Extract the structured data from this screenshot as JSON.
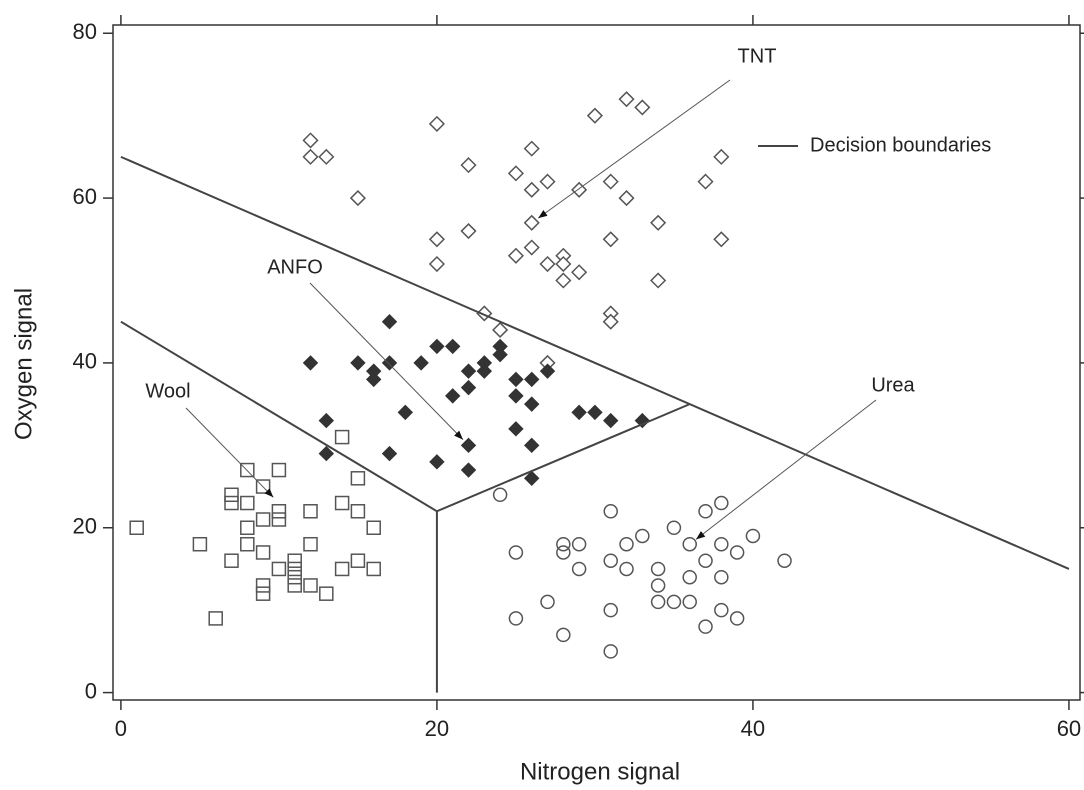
{
  "chart_data": {
    "type": "scatter",
    "xlabel": "Nitrogen signal",
    "ylabel": "Oxygen signal",
    "xlim": [
      -0.5,
      60.7
    ],
    "ylim": [
      -0.9,
      81
    ],
    "xticks": [
      0,
      20,
      40,
      60
    ],
    "yticks": [
      0,
      20,
      40,
      60,
      80
    ],
    "legend": "upper right",
    "series": [
      {
        "marker": "diamond-open",
        "color": "#555555",
        "x": [
          12,
          12,
          13,
          15,
          20,
          22,
          20,
          20,
          22,
          23,
          24,
          25,
          26,
          26,
          27,
          25,
          26,
          26,
          27,
          28,
          28,
          28,
          29,
          29,
          30,
          31,
          31,
          31,
          31,
          32,
          33,
          32,
          34,
          34,
          37,
          38,
          38,
          27
        ],
        "y": [
          67,
          65,
          65,
          60,
          69,
          64,
          55,
          52,
          56,
          46,
          44,
          63,
          66,
          61,
          62,
          53,
          54,
          57,
          52,
          53,
          52,
          50,
          51,
          61,
          70,
          62,
          55,
          46,
          45,
          72,
          71,
          60,
          57,
          50,
          62,
          65,
          55,
          40
        ]
      },
      {
        "marker": "diamond-filled",
        "color": "#333333",
        "x": [
          12,
          13,
          13,
          15,
          16,
          16,
          17,
          17,
          17,
          18,
          19,
          20,
          21,
          20,
          21,
          22,
          22,
          22,
          22,
          23,
          23,
          24,
          24,
          25,
          25,
          25,
          26,
          26,
          26,
          26,
          27,
          29,
          30,
          31,
          33
        ],
        "y": [
          40,
          33,
          29,
          40,
          39,
          38,
          45,
          40,
          29,
          34,
          40,
          42,
          42,
          28,
          36,
          39,
          37,
          30,
          27,
          40,
          39,
          42,
          41,
          38,
          36,
          32,
          38,
          35,
          30,
          26,
          39,
          34,
          34,
          33,
          33
        ]
      },
      {
        "marker": "square-open",
        "color": "#555555",
        "x": [
          1,
          5,
          6,
          7,
          7,
          7,
          8,
          8,
          8,
          8,
          9,
          9,
          9,
          9,
          9,
          10,
          10,
          10,
          10,
          11,
          11,
          11,
          11,
          12,
          12,
          12,
          13,
          14,
          14,
          14,
          15,
          15,
          15,
          16,
          16
        ],
        "y": [
          20,
          18,
          9,
          16,
          24,
          23,
          27,
          23,
          20,
          18,
          25,
          21,
          17,
          13,
          12,
          27,
          22,
          21,
          15,
          16,
          15,
          14,
          13,
          22,
          18,
          13,
          12,
          31,
          23,
          15,
          26,
          22,
          16,
          20,
          15
        ]
      },
      {
        "marker": "circle-open",
        "color": "#555555",
        "x": [
          24,
          25,
          25,
          27,
          28,
          28,
          28,
          29,
          29,
          31,
          31,
          31,
          31,
          32,
          32,
          33,
          34,
          34,
          34,
          35,
          35,
          36,
          36,
          36,
          37,
          37,
          37,
          38,
          38,
          38,
          38,
          39,
          39,
          40,
          42
        ],
        "y": [
          24,
          17,
          9,
          11,
          18,
          17,
          7,
          18,
          15,
          22,
          16,
          10,
          5,
          18,
          15,
          19,
          15,
          13,
          11,
          20,
          11,
          11,
          14,
          18,
          22,
          16,
          8,
          23,
          18,
          14,
          10,
          17,
          9,
          19,
          16
        ]
      },
      {
        "type": "line",
        "name": "Decision boundaries",
        "color": "#444444",
        "x": [
          0,
          60,
          null,
          0,
          20,
          20,
          null,
          20,
          36
        ],
        "y": [
          65,
          15,
          null,
          45,
          22,
          0,
          null,
          22,
          35
        ]
      }
    ],
    "annotations": [
      {
        "text": "TNT",
        "x": 26,
        "y": 57
      },
      {
        "text": "ANFO",
        "x": 22,
        "y": 30
      },
      {
        "text": "Wool",
        "x": 10,
        "y": 23
      },
      {
        "text": "Urea",
        "x": 36,
        "y": 18
      }
    ]
  }
}
